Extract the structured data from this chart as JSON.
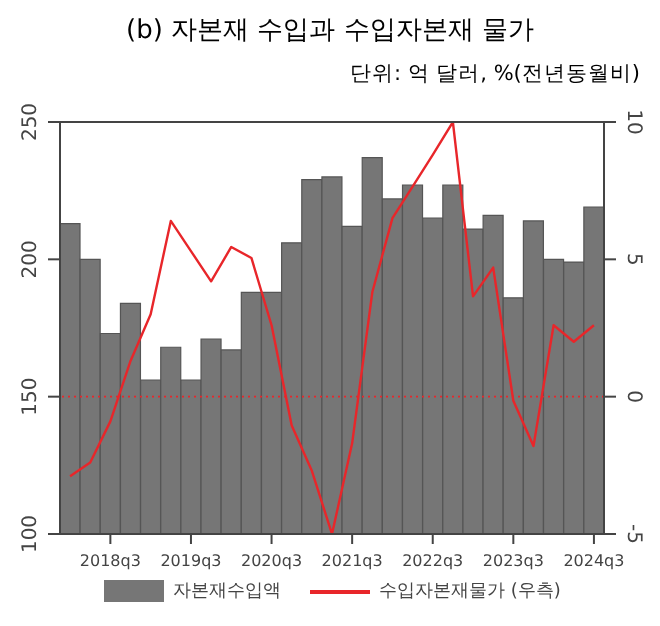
{
  "chart_data": {
    "type": "bar",
    "title": "(b) 자본재 수입과 수입자본재 물가",
    "subtitle": "단위: 억 달러, %(전년동월비)",
    "categories": [
      null,
      null,
      "2018q3",
      null,
      null,
      null,
      "2019q3",
      null,
      null,
      null,
      "2020q3",
      null,
      null,
      null,
      "2021q3",
      null,
      null,
      null,
      "2022q3",
      null,
      null,
      null,
      "2023q3",
      null,
      null,
      null,
      "2024q3"
    ],
    "series": [
      {
        "name": "자본재수입액",
        "color": "#767676",
        "values": [
          213,
          200,
          173,
          184,
          156,
          168,
          156,
          171,
          167,
          188,
          188,
          206,
          229,
          230,
          212,
          237,
          222,
          227,
          215,
          227,
          211,
          216,
          186,
          214,
          200,
          199,
          219
        ]
      },
      {
        "name": "수입자본재물가 (우측)",
        "type": "line",
        "axis": "y2",
        "color": "#e8262a",
        "values": [
          -2.9,
          -2.4,
          -0.9,
          1.3,
          3.0,
          6.4,
          5.3,
          4.2,
          5.45,
          5.05,
          2.6,
          -1.05,
          -2.7,
          -5,
          -1.7,
          3.8,
          6.5,
          7.65,
          8.8,
          10,
          3.65,
          4.7,
          -0.15,
          -1.8,
          2.6,
          2.0,
          2.6
        ]
      }
    ],
    "ylim": [
      100,
      250
    ],
    "yticks": [
      100,
      150,
      200,
      250
    ],
    "y2lim": [
      -5,
      10
    ],
    "y2ticks": [
      -5,
      0,
      5,
      10
    ],
    "ref_lines": [
      {
        "axis": "y2",
        "value": 0,
        "color": "#e8262a",
        "line_style": "dotted"
      }
    ],
    "grid": false,
    "legend": "bottom"
  }
}
